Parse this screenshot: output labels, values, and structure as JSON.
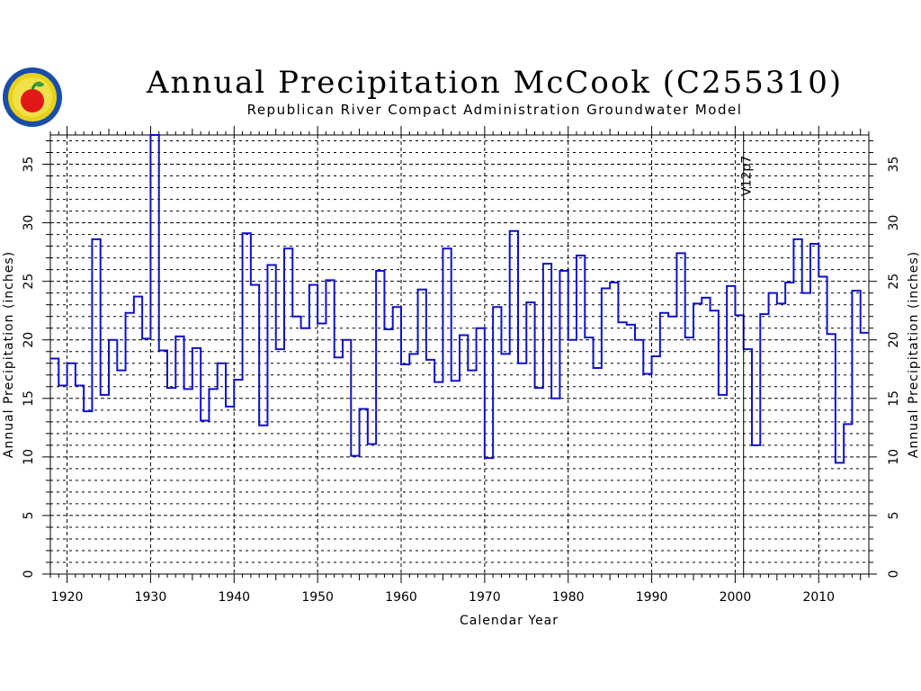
{
  "header": {
    "title": "Annual Precipitation McCook (C255310)",
    "subtitle": "Republican River Compact Administration Groundwater Model"
  },
  "logo": {
    "icon": "apple-seal-logo"
  },
  "colors": {
    "series": "#1010c8",
    "grid": "#000000",
    "axis": "#000000"
  },
  "chart_data": {
    "type": "line",
    "step": true,
    "title": "Annual Precipitation McCook (C255310)",
    "subtitle": "Republican River Compact Administration Groundwater Model",
    "xlabel": "Calendar Year",
    "ylabel": "Annual Precipitation (inches)",
    "ylabel_right": "Annual Precipitation (inches)",
    "xlim": [
      1918,
      2016
    ],
    "ylim": [
      0,
      37.5
    ],
    "xticks": [
      1920,
      1930,
      1940,
      1950,
      1960,
      1970,
      1980,
      1990,
      2000,
      2010
    ],
    "yticks": [
      0,
      5,
      10,
      15,
      20,
      25,
      30,
      35
    ],
    "grid": true,
    "marker": {
      "year": 2001,
      "label": "V12p7"
    },
    "series": [
      {
        "x": [
          1918,
          1919,
          1920,
          1921,
          1922,
          1923,
          1924,
          1925,
          1926,
          1927,
          1928,
          1929,
          1930,
          1931,
          1932,
          1933,
          1934,
          1935,
          1936,
          1937,
          1938,
          1939,
          1940,
          1941,
          1942,
          1943,
          1944,
          1945,
          1946,
          1947,
          1948,
          1949,
          1950,
          1951,
          1952,
          1953,
          1954,
          1955,
          1956,
          1957,
          1958,
          1959,
          1960,
          1961,
          1962,
          1963,
          1964,
          1965,
          1966,
          1967,
          1968,
          1969,
          1970,
          1971,
          1972,
          1973,
          1974,
          1975,
          1976,
          1977,
          1978,
          1979,
          1980,
          1981,
          1982,
          1983,
          1984,
          1985,
          1986,
          1987,
          1988,
          1989,
          1990,
          1991,
          1992,
          1993,
          1994,
          1995,
          1996,
          1997,
          1998,
          1999,
          2000,
          2001,
          2002,
          2003,
          2004,
          2005,
          2006,
          2007,
          2008,
          2009,
          2010,
          2011,
          2012,
          2013,
          2014,
          2015
        ],
        "values": [
          18.4,
          16.1,
          18.0,
          16.1,
          13.9,
          28.6,
          15.3,
          20.0,
          17.4,
          22.3,
          23.7,
          20.1,
          37.5,
          19.1,
          15.9,
          20.3,
          15.8,
          19.3,
          13.1,
          15.8,
          18.0,
          14.3,
          16.6,
          29.1,
          24.7,
          12.7,
          26.4,
          19.2,
          27.8,
          22.0,
          21.0,
          24.7,
          21.4,
          25.1,
          18.5,
          20.0,
          10.1,
          14.1,
          11.1,
          25.9,
          20.9,
          22.8,
          17.9,
          18.8,
          24.3,
          18.3,
          16.4,
          27.8,
          16.5,
          20.4,
          17.4,
          21.0,
          9.9,
          22.8,
          18.8,
          29.3,
          18.0,
          23.2,
          15.9,
          26.5,
          15.0,
          25.9,
          20.0,
          27.2,
          20.2,
          17.6,
          24.4,
          24.9,
          21.5,
          21.3,
          20.0,
          17.1,
          18.6,
          22.3,
          22.0,
          27.4,
          20.2,
          23.1,
          23.6,
          22.5,
          15.3,
          24.6,
          22.1,
          19.2,
          11.0,
          22.2,
          24.0,
          23.1,
          24.9,
          28.6,
          24.0,
          28.2,
          25.4,
          20.5,
          9.5,
          12.8,
          24.2,
          20.6
        ]
      }
    ]
  }
}
